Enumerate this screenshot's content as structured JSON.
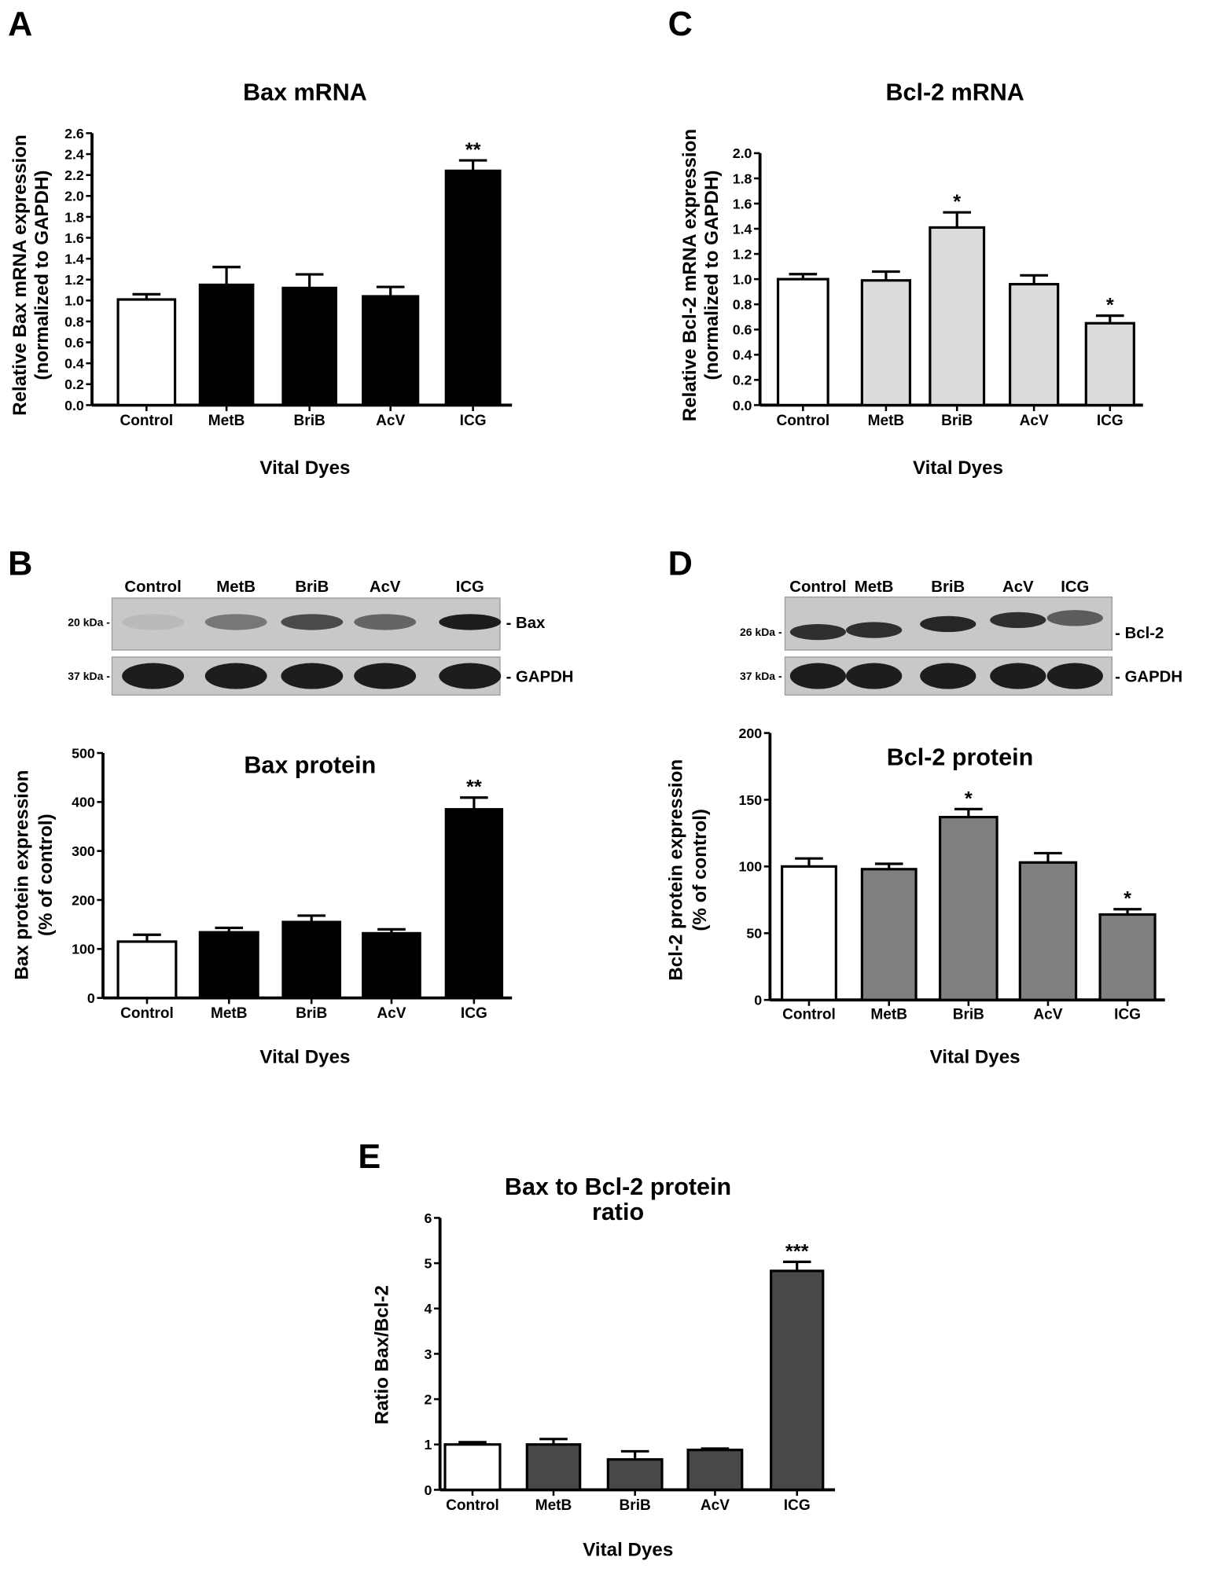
{
  "panels": {
    "A": "A",
    "B": "B",
    "C": "C",
    "D": "D",
    "E": "E"
  },
  "blots": [
    {
      "panel": "B",
      "lanes": [
        "Control",
        "MetB",
        "BriB",
        "AcV",
        "ICG"
      ],
      "rows": [
        {
          "marker": "20 kDa -",
          "protein": "- Bax",
          "intensity": [
            0.08,
            0.45,
            0.7,
            0.55,
            0.95
          ]
        },
        {
          "marker": "37 kDa -",
          "protein": "- GAPDH",
          "intensity": [
            0.95,
            0.95,
            0.95,
            0.95,
            0.95
          ]
        }
      ]
    },
    {
      "panel": "D",
      "lanes": [
        "Control",
        "MetB",
        "BriB",
        "AcV",
        "ICG"
      ],
      "rows": [
        {
          "marker": "26 kDa -",
          "protein": "- Bcl-2",
          "intensity": [
            0.85,
            0.85,
            0.9,
            0.85,
            0.6
          ]
        },
        {
          "marker": "37 kDa -",
          "protein": "- GAPDH",
          "intensity": [
            0.95,
            0.95,
            0.95,
            0.95,
            0.95
          ]
        }
      ]
    }
  ],
  "chart_data": [
    {
      "panel": "A",
      "type": "bar",
      "title": [
        "Bax mRNA"
      ],
      "ylabel": [
        "Relative Bax mRNA expression",
        "(normalized to GAPDH)"
      ],
      "xlabel": "Vital Dyes",
      "categories": [
        "Control",
        "MetB",
        "BriB",
        "AcV",
        "ICG"
      ],
      "values": [
        1.01,
        1.15,
        1.12,
        1.04,
        2.24
      ],
      "errors": [
        0.05,
        0.17,
        0.13,
        0.09,
        0.1
      ],
      "significance": [
        "",
        "",
        "",
        "",
        "**"
      ],
      "ylim": [
        0,
        2.6
      ],
      "yticks": [
        "0.0",
        "0.2",
        "0.4",
        "0.6",
        "0.8",
        "1.0",
        "1.2",
        "1.4",
        "1.6",
        "1.8",
        "2.0",
        "2.2",
        "2.4",
        "2.6"
      ],
      "colors": [
        "#ffffff",
        "#000000",
        "#000000",
        "#000000",
        "#000000"
      ]
    },
    {
      "panel": "C",
      "type": "bar",
      "title": [
        "Bcl-2 mRNA"
      ],
      "ylabel": [
        "Relative Bcl-2 mRNA expression",
        "(normalized to GAPDH)"
      ],
      "xlabel": "Vital Dyes",
      "categories": [
        "Control",
        "MetB",
        "BriB",
        "AcV",
        "ICG"
      ],
      "values": [
        1.0,
        0.99,
        1.41,
        0.96,
        0.65
      ],
      "errors": [
        0.04,
        0.07,
        0.12,
        0.07,
        0.06
      ],
      "significance": [
        "",
        "",
        "*",
        "",
        "*"
      ],
      "ylim": [
        0,
        2.0
      ],
      "yticks": [
        "0.0",
        "0.2",
        "0.4",
        "0.6",
        "0.8",
        "1.0",
        "1.2",
        "1.4",
        "1.6",
        "1.8",
        "2.0"
      ],
      "colors": [
        "#ffffff",
        "#dcdcdc",
        "#dcdcdc",
        "#dcdcdc",
        "#dcdcdc"
      ]
    },
    {
      "panel": "B",
      "type": "bar",
      "title": [
        "Bax protein"
      ],
      "ylabel": [
        "Bax protein expression",
        "(% of control)"
      ],
      "xlabel": "Vital Dyes",
      "categories": [
        "Control",
        "MetB",
        "BriB",
        "AcV",
        "ICG"
      ],
      "values": [
        115,
        134,
        155,
        132,
        385
      ],
      "errors": [
        14,
        9,
        13,
        8,
        24
      ],
      "significance": [
        "",
        "",
        "",
        "",
        "**"
      ],
      "ylim": [
        0,
        500
      ],
      "yticks": [
        "0",
        "100",
        "200",
        "300",
        "400",
        "500"
      ],
      "colors": [
        "#ffffff",
        "#000000",
        "#000000",
        "#000000",
        "#000000"
      ]
    },
    {
      "panel": "D",
      "type": "bar",
      "title": [
        "Bcl-2 protein"
      ],
      "ylabel": [
        "Bcl-2 protein expression",
        "(% of control)"
      ],
      "xlabel": "Vital Dyes",
      "categories": [
        "Control",
        "MetB",
        "BriB",
        "AcV",
        "ICG"
      ],
      "values": [
        100,
        98,
        137,
        103,
        64
      ],
      "errors": [
        6,
        4,
        6,
        7,
        4
      ],
      "significance": [
        "",
        "",
        "*",
        "",
        "*"
      ],
      "ylim": [
        0,
        200
      ],
      "yticks": [
        "0",
        "50",
        "100",
        "150",
        "200"
      ],
      "colors": [
        "#ffffff",
        "#808080",
        "#808080",
        "#808080",
        "#808080"
      ]
    },
    {
      "panel": "E",
      "type": "bar",
      "title": [
        "Bax to Bcl-2 protein",
        "ratio"
      ],
      "ylabel": [
        "Ratio Bax/Bcl-2"
      ],
      "xlabel": "Vital Dyes",
      "categories": [
        "Control",
        "MetB",
        "BriB",
        "AcV",
        "ICG"
      ],
      "values": [
        1.0,
        1.0,
        0.67,
        0.88,
        4.83
      ],
      "errors": [
        0.05,
        0.12,
        0.18,
        0.03,
        0.2
      ],
      "significance": [
        "",
        "",
        "",
        "",
        "***"
      ],
      "ylim": [
        0,
        6
      ],
      "yticks": [
        "0",
        "1",
        "2",
        "3",
        "4",
        "5",
        "6"
      ],
      "colors": [
        "#ffffff",
        "#484848",
        "#484848",
        "#484848",
        "#484848"
      ]
    }
  ]
}
